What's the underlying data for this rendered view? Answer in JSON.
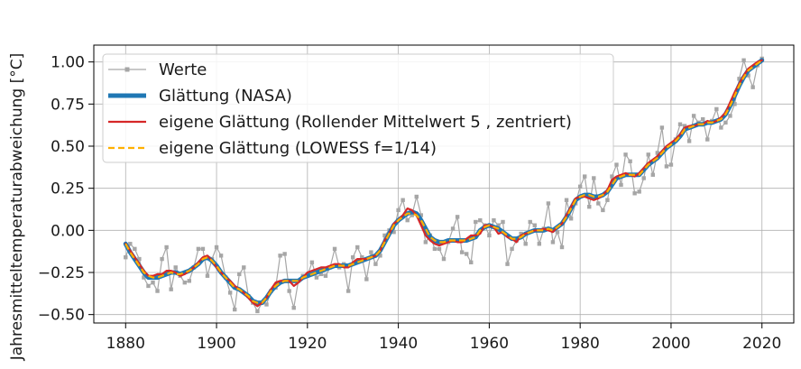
{
  "chart_data": {
    "type": "line",
    "title": "",
    "xlabel": "",
    "ylabel": "Jahresmitteltemperaturabweichung [°C]",
    "xlim": [
      1873,
      2027
    ],
    "ylim": [
      -0.55,
      1.1
    ],
    "xticks": [
      1880,
      1900,
      1920,
      1940,
      1960,
      1980,
      2000,
      2020
    ],
    "yticks": [
      -0.5,
      -0.25,
      0.0,
      0.25,
      0.5,
      0.75,
      1.0
    ],
    "xtick_labels": [
      "1880",
      "1900",
      "1920",
      "1940",
      "1960",
      "1980",
      "2000",
      "2020"
    ],
    "ytick_labels": [
      "−0.50",
      "−0.25",
      "0.00",
      "0.25",
      "0.50",
      "0.75",
      "1.00"
    ],
    "grid": true,
    "legend_position": "top-left",
    "x": [
      1880,
      1881,
      1882,
      1883,
      1884,
      1885,
      1886,
      1887,
      1888,
      1889,
      1890,
      1891,
      1892,
      1893,
      1894,
      1895,
      1896,
      1897,
      1898,
      1899,
      1900,
      1901,
      1902,
      1903,
      1904,
      1905,
      1906,
      1907,
      1908,
      1909,
      1910,
      1911,
      1912,
      1913,
      1914,
      1915,
      1916,
      1917,
      1918,
      1919,
      1920,
      1921,
      1922,
      1923,
      1924,
      1925,
      1926,
      1927,
      1928,
      1929,
      1930,
      1931,
      1932,
      1933,
      1934,
      1935,
      1936,
      1937,
      1938,
      1939,
      1940,
      1941,
      1942,
      1943,
      1944,
      1945,
      1946,
      1947,
      1948,
      1949,
      1950,
      1951,
      1952,
      1953,
      1954,
      1955,
      1956,
      1957,
      1958,
      1959,
      1960,
      1961,
      1962,
      1963,
      1964,
      1965,
      1966,
      1967,
      1968,
      1969,
      1970,
      1971,
      1972,
      1973,
      1974,
      1975,
      1976,
      1977,
      1978,
      1979,
      1980,
      1981,
      1982,
      1983,
      1984,
      1985,
      1986,
      1987,
      1988,
      1989,
      1990,
      1991,
      1992,
      1993,
      1994,
      1995,
      1996,
      1997,
      1998,
      1999,
      2000,
      2001,
      2002,
      2003,
      2004,
      2005,
      2006,
      2007,
      2008,
      2009,
      2010,
      2011,
      2012,
      2013,
      2014,
      2015,
      2016,
      2017,
      2018,
      2019,
      2020
    ],
    "series": [
      {
        "name": "Werte",
        "color": "#a6a6a6",
        "values": [
          -0.16,
          -0.08,
          -0.11,
          -0.17,
          -0.28,
          -0.33,
          -0.31,
          -0.36,
          -0.17,
          -0.1,
          -0.35,
          -0.22,
          -0.27,
          -0.31,
          -0.3,
          -0.22,
          -0.11,
          -0.11,
          -0.27,
          -0.17,
          -0.1,
          -0.15,
          -0.28,
          -0.37,
          -0.47,
          -0.26,
          -0.22,
          -0.39,
          -0.43,
          -0.48,
          -0.43,
          -0.44,
          -0.36,
          -0.34,
          -0.15,
          -0.14,
          -0.36,
          -0.46,
          -0.3,
          -0.27,
          -0.27,
          -0.19,
          -0.28,
          -0.26,
          -0.27,
          -0.22,
          -0.11,
          -0.22,
          -0.2,
          -0.36,
          -0.16,
          -0.1,
          -0.16,
          -0.29,
          -0.13,
          -0.2,
          -0.15,
          -0.03,
          -0.0,
          -0.01,
          0.12,
          0.18,
          0.06,
          0.09,
          0.2,
          0.09,
          -0.07,
          -0.03,
          -0.11,
          -0.11,
          -0.17,
          -0.07,
          0.01,
          0.08,
          -0.13,
          -0.14,
          -0.19,
          0.05,
          0.06,
          0.03,
          -0.03,
          0.06,
          0.03,
          0.05,
          -0.2,
          -0.11,
          -0.06,
          -0.02,
          -0.08,
          0.05,
          0.03,
          -0.08,
          0.01,
          0.16,
          -0.07,
          -0.01,
          -0.1,
          0.18,
          0.07,
          0.16,
          0.26,
          0.32,
          0.14,
          0.31,
          0.16,
          0.12,
          0.18,
          0.32,
          0.39,
          0.27,
          0.45,
          0.41,
          0.22,
          0.23,
          0.31,
          0.45,
          0.33,
          0.46,
          0.61,
          0.38,
          0.39,
          0.54,
          0.63,
          0.62,
          0.53,
          0.68,
          0.64,
          0.66,
          0.54,
          0.65,
          0.72,
          0.61,
          0.64,
          0.68,
          0.75,
          0.9,
          1.01,
          0.92,
          0.85,
          0.98,
          1.02
        ]
      },
      {
        "name": "Glättung (NASA)",
        "color": "#1f77b4",
        "values": [
          -0.08,
          -0.13,
          -0.17,
          -0.21,
          -0.25,
          -0.28,
          -0.28,
          -0.28,
          -0.27,
          -0.26,
          -0.25,
          -0.25,
          -0.26,
          -0.25,
          -0.24,
          -0.22,
          -0.2,
          -0.17,
          -0.16,
          -0.18,
          -0.21,
          -0.25,
          -0.28,
          -0.31,
          -0.34,
          -0.35,
          -0.37,
          -0.39,
          -0.42,
          -0.43,
          -0.43,
          -0.4,
          -0.36,
          -0.33,
          -0.31,
          -0.3,
          -0.3,
          -0.3,
          -0.3,
          -0.28,
          -0.27,
          -0.26,
          -0.25,
          -0.24,
          -0.23,
          -0.22,
          -0.21,
          -0.21,
          -0.21,
          -0.21,
          -0.2,
          -0.19,
          -0.18,
          -0.17,
          -0.16,
          -0.15,
          -0.12,
          -0.07,
          -0.02,
          0.03,
          0.06,
          0.08,
          0.1,
          0.11,
          0.1,
          0.06,
          0.01,
          -0.04,
          -0.06,
          -0.07,
          -0.07,
          -0.06,
          -0.06,
          -0.06,
          -0.06,
          -0.06,
          -0.05,
          -0.04,
          0.0,
          0.02,
          0.03,
          0.02,
          0.01,
          -0.01,
          -0.03,
          -0.05,
          -0.05,
          -0.04,
          -0.02,
          -0.01,
          0.0,
          0.0,
          0.0,
          0.01,
          0.0,
          0.02,
          0.04,
          0.08,
          0.13,
          0.18,
          0.2,
          0.21,
          0.21,
          0.2,
          0.2,
          0.21,
          0.23,
          0.27,
          0.31,
          0.32,
          0.33,
          0.33,
          0.33,
          0.33,
          0.36,
          0.39,
          0.41,
          0.43,
          0.46,
          0.49,
          0.51,
          0.53,
          0.56,
          0.6,
          0.61,
          0.62,
          0.63,
          0.63,
          0.64,
          0.64,
          0.65,
          0.66,
          0.69,
          0.74,
          0.8,
          0.86,
          0.91,
          0.95,
          0.97,
          0.99,
          1.01
        ]
      },
      {
        "name": "eigene Glättung (Rollender Mittelwert 5 , zentriert)",
        "color": "#d62728",
        "values": [
          -0.08,
          -0.12,
          -0.16,
          -0.2,
          -0.24,
          -0.27,
          -0.27,
          -0.26,
          -0.26,
          -0.24,
          -0.24,
          -0.25,
          -0.27,
          -0.26,
          -0.24,
          -0.22,
          -0.19,
          -0.16,
          -0.15,
          -0.18,
          -0.22,
          -0.25,
          -0.28,
          -0.3,
          -0.33,
          -0.35,
          -0.37,
          -0.4,
          -0.43,
          -0.45,
          -0.43,
          -0.4,
          -0.35,
          -0.31,
          -0.3,
          -0.3,
          -0.3,
          -0.33,
          -0.31,
          -0.28,
          -0.25,
          -0.24,
          -0.23,
          -0.22,
          -0.22,
          -0.21,
          -0.2,
          -0.2,
          -0.22,
          -0.22,
          -0.19,
          -0.17,
          -0.17,
          -0.17,
          -0.16,
          -0.15,
          -0.12,
          -0.06,
          -0.02,
          0.04,
          0.06,
          0.09,
          0.13,
          0.12,
          0.09,
          0.03,
          -0.03,
          -0.06,
          -0.08,
          -0.09,
          -0.08,
          -0.07,
          -0.06,
          -0.07,
          -0.07,
          -0.05,
          -0.03,
          -0.03,
          -0.02,
          0.03,
          0.03,
          0.02,
          -0.02,
          -0.01,
          -0.04,
          -0.05,
          -0.07,
          -0.03,
          -0.02,
          -0.01,
          0.0,
          0.0,
          0.01,
          0.0,
          -0.01,
          0.02,
          0.04,
          0.09,
          0.14,
          0.19,
          0.2,
          0.2,
          0.19,
          0.18,
          0.19,
          0.21,
          0.24,
          0.3,
          0.32,
          0.33,
          0.34,
          0.33,
          0.32,
          0.34,
          0.37,
          0.4,
          0.42,
          0.44,
          0.47,
          0.5,
          0.52,
          0.54,
          0.57,
          0.61,
          0.62,
          0.62,
          0.63,
          0.63,
          0.65,
          0.64,
          0.65,
          0.67,
          0.7,
          0.76,
          0.82,
          0.87,
          0.92,
          0.96,
          0.98,
          1.0,
          1.01
        ]
      },
      {
        "name": "eigene Glättung (LOWESS f=1/14)",
        "color": "#ffb000",
        "dashed": true,
        "values": [
          -0.08,
          -0.13,
          -0.17,
          -0.21,
          -0.25,
          -0.27,
          -0.28,
          -0.28,
          -0.27,
          -0.26,
          -0.25,
          -0.26,
          -0.26,
          -0.25,
          -0.24,
          -0.22,
          -0.2,
          -0.17,
          -0.16,
          -0.18,
          -0.21,
          -0.25,
          -0.28,
          -0.31,
          -0.34,
          -0.35,
          -0.37,
          -0.39,
          -0.42,
          -0.43,
          -0.43,
          -0.4,
          -0.36,
          -0.33,
          -0.31,
          -0.3,
          -0.3,
          -0.3,
          -0.3,
          -0.28,
          -0.27,
          -0.26,
          -0.25,
          -0.24,
          -0.23,
          -0.22,
          -0.21,
          -0.21,
          -0.21,
          -0.21,
          -0.2,
          -0.19,
          -0.18,
          -0.17,
          -0.16,
          -0.15,
          -0.12,
          -0.07,
          -0.02,
          0.03,
          0.06,
          0.08,
          0.1,
          0.1,
          0.09,
          0.06,
          0.01,
          -0.04,
          -0.06,
          -0.07,
          -0.07,
          -0.06,
          -0.06,
          -0.06,
          -0.06,
          -0.06,
          -0.05,
          -0.04,
          0.0,
          0.02,
          0.03,
          0.02,
          0.01,
          -0.01,
          -0.03,
          -0.05,
          -0.05,
          -0.04,
          -0.02,
          -0.01,
          0.0,
          0.0,
          0.0,
          0.01,
          0.0,
          0.02,
          0.04,
          0.08,
          0.13,
          0.18,
          0.2,
          0.21,
          0.21,
          0.2,
          0.2,
          0.21,
          0.23,
          0.27,
          0.31,
          0.32,
          0.33,
          0.33,
          0.33,
          0.33,
          0.36,
          0.39,
          0.41,
          0.43,
          0.46,
          0.49,
          0.51,
          0.53,
          0.56,
          0.6,
          0.61,
          0.62,
          0.63,
          0.63,
          0.64,
          0.64,
          0.65,
          0.66,
          0.69,
          0.74,
          0.8,
          0.86,
          0.91,
          0.95,
          0.97,
          0.99,
          1.01
        ]
      }
    ]
  }
}
